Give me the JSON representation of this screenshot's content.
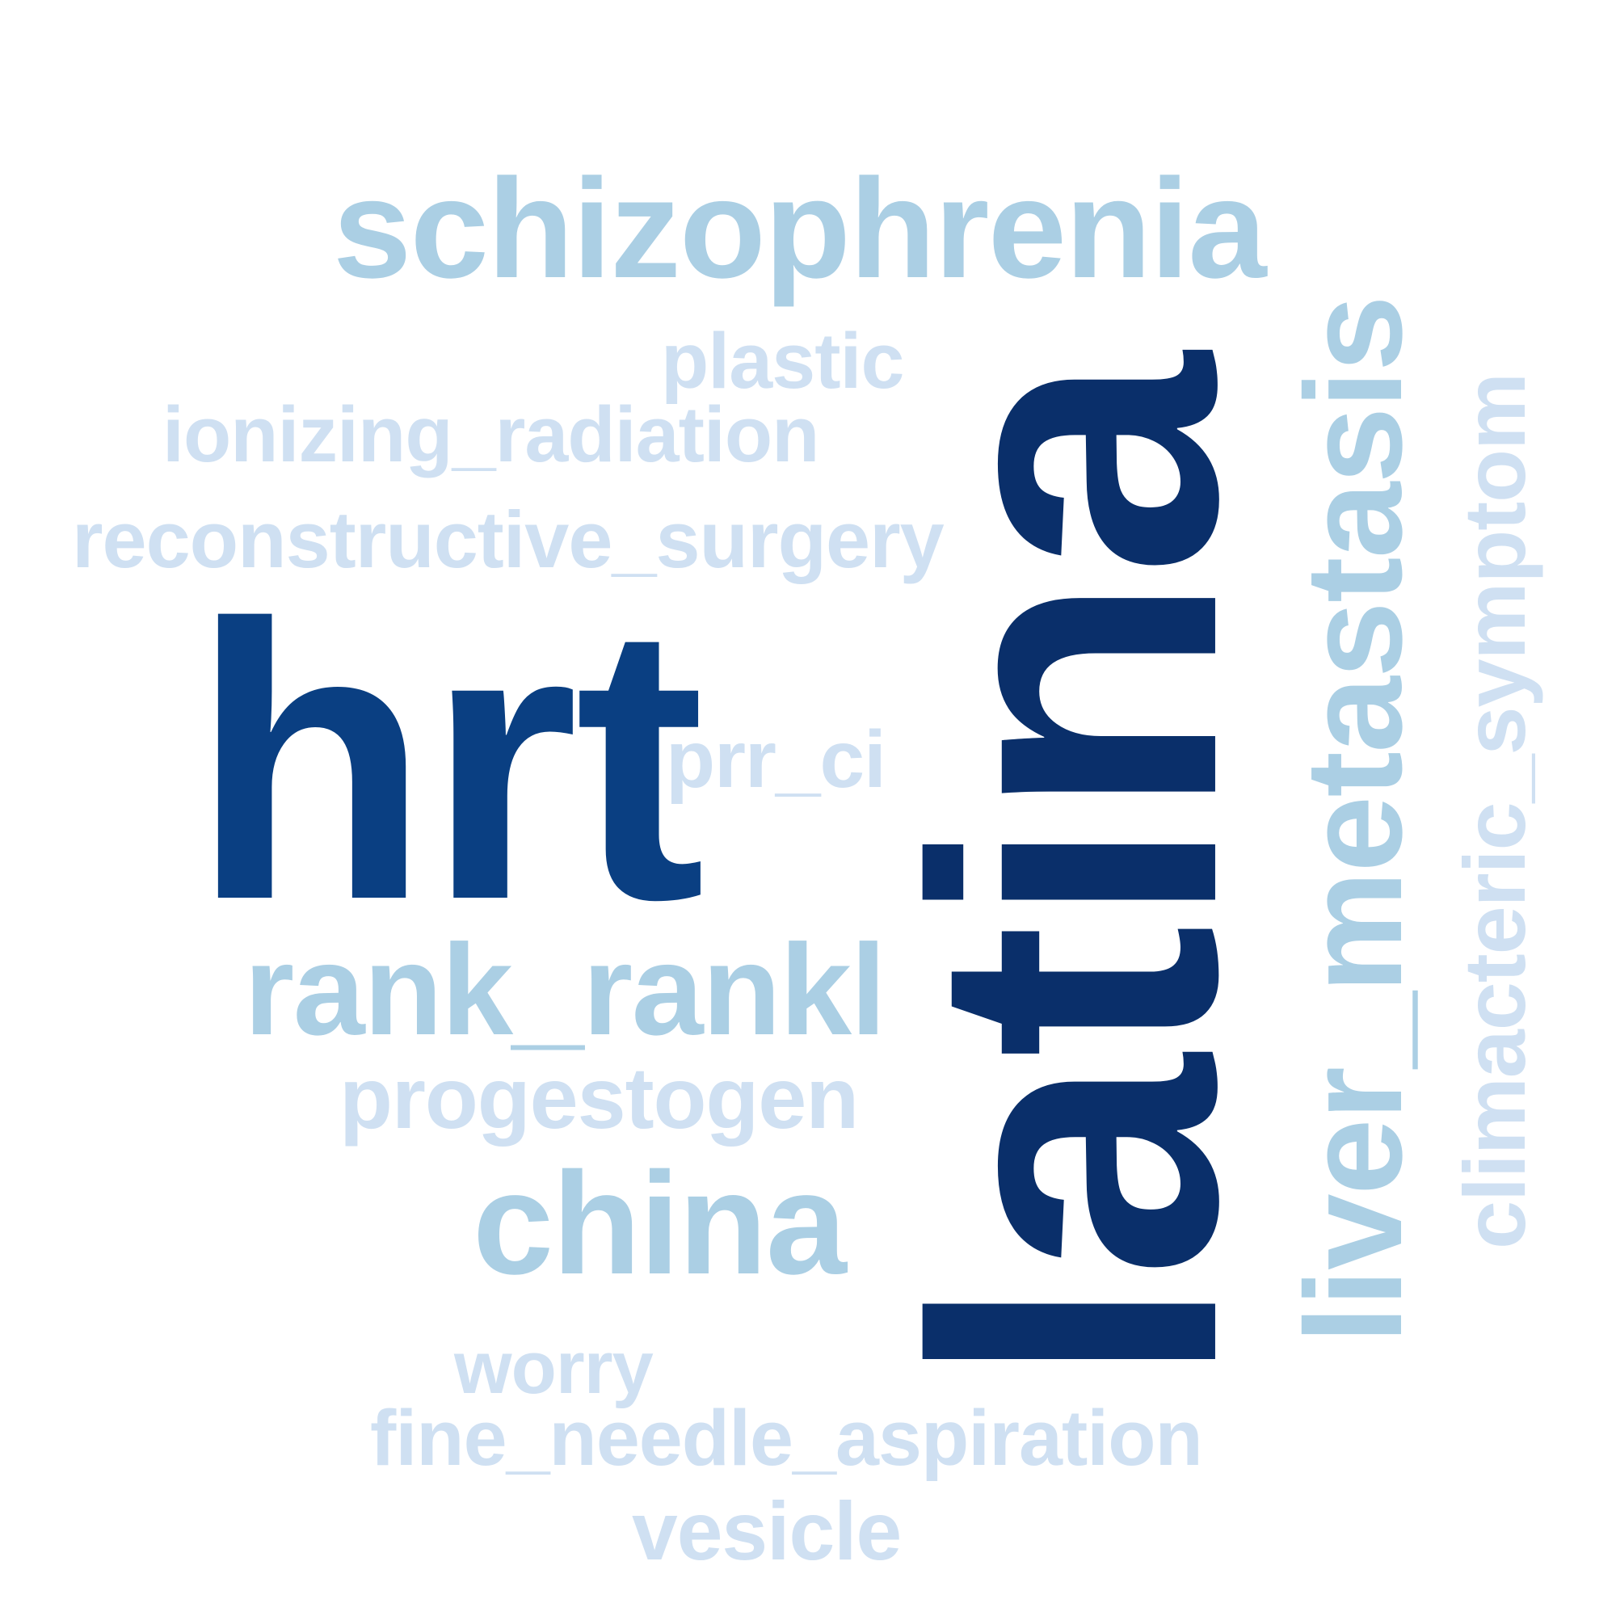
{
  "words": {
    "schizophrenia": {
      "text": "schizophrenia",
      "color": "#abcfe4"
    },
    "plastic": {
      "text": "plastic",
      "color": "#cfe0f2"
    },
    "ionizing_radiation": {
      "text": "ionizing_radiation",
      "color": "#cfe0f2"
    },
    "reconstructive_surgery": {
      "text": "reconstructive_surgery",
      "color": "#cfe0f2"
    },
    "hrt": {
      "text": "hrt",
      "color": "#0a3f82"
    },
    "prr_ci": {
      "text": "prr_ci",
      "color": "#cfe0f2"
    },
    "rank_rankl": {
      "text": "rank_rankl",
      "color": "#abcfe4"
    },
    "progestogen": {
      "text": "progestogen",
      "color": "#cfe0f2"
    },
    "china": {
      "text": "china",
      "color": "#abcfe4"
    },
    "worry": {
      "text": "worry",
      "color": "#cfe0f2"
    },
    "fine_needle_aspiration": {
      "text": "fine_needle_aspiration",
      "color": "#cfe0f2"
    },
    "vesicle": {
      "text": "vesicle",
      "color": "#cfe0f2"
    },
    "latina": {
      "text": "latina",
      "color": "#0a2f6a",
      "rotation": "vertical"
    },
    "liver_metastasis": {
      "text": "liver_metastasis",
      "color": "#abcfe4",
      "rotation": "vertical"
    },
    "climacteric_symptom": {
      "text": "climacteric_symptom",
      "color": "#cfe0f2",
      "rotation": "vertical"
    }
  }
}
